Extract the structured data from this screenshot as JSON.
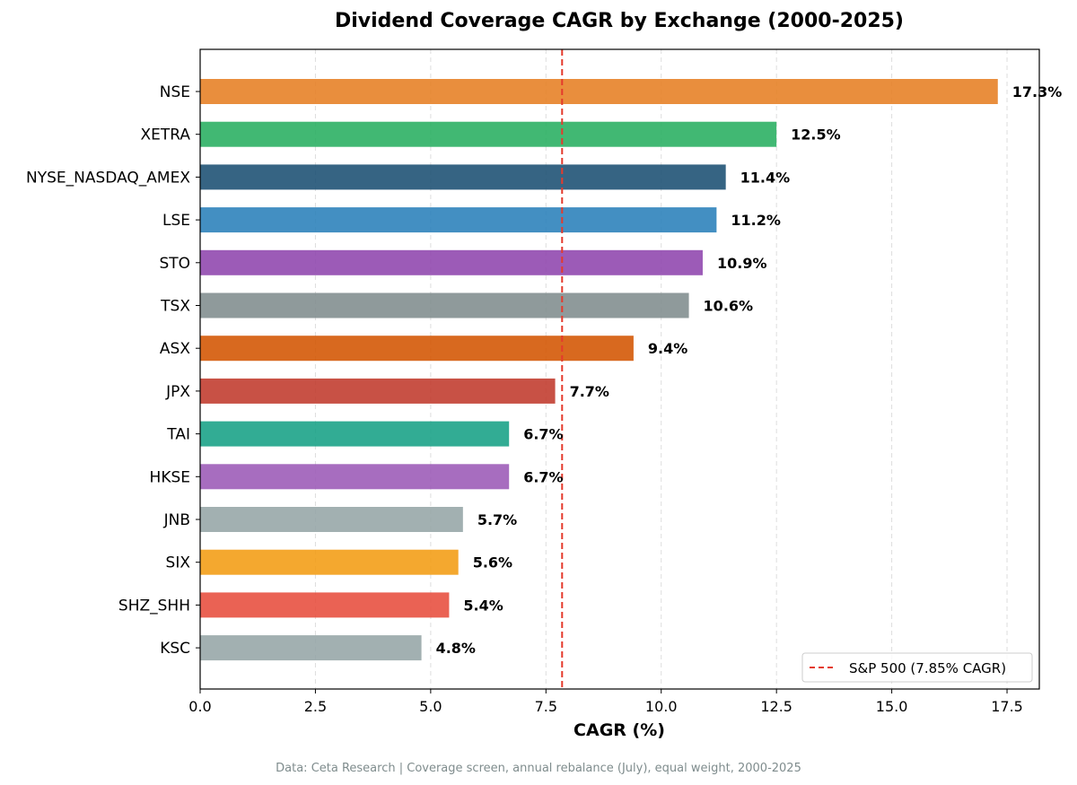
{
  "chart_data": {
    "type": "bar",
    "orientation": "horizontal",
    "title": "Dividend Coverage CAGR by Exchange (2000-2025)",
    "xlabel": "CAGR (%)",
    "ylabel": "",
    "xlim": [
      0,
      18.2
    ],
    "xticks": [
      0.0,
      2.5,
      5.0,
      7.5,
      10.0,
      12.5,
      15.0,
      17.5
    ],
    "xtick_labels": [
      "0.0",
      "2.5",
      "5.0",
      "7.5",
      "10.0",
      "12.5",
      "15.0",
      "17.5"
    ],
    "grid": "x-dashed",
    "categories": [
      "NSE",
      "XETRA",
      "NYSE_NASDAQ_AMEX",
      "LSE",
      "STO",
      "TSX",
      "ASX",
      "JPX",
      "TAI",
      "HKSE",
      "JNB",
      "SIX",
      "SHZ_SHH",
      "KSC"
    ],
    "values": [
      17.3,
      12.5,
      11.4,
      11.2,
      10.9,
      10.6,
      9.4,
      7.7,
      6.7,
      6.7,
      5.7,
      5.6,
      5.4,
      4.8
    ],
    "value_labels": [
      "17.3%",
      "12.5%",
      "11.4%",
      "11.2%",
      "10.9%",
      "10.6%",
      "9.4%",
      "7.7%",
      "6.7%",
      "6.7%",
      "5.7%",
      "5.6%",
      "5.4%",
      "4.8%"
    ],
    "colors": [
      "#e67e22",
      "#27ae60",
      "#1a4e72",
      "#2980b9",
      "#8e44ad",
      "#7f8c8d",
      "#d35400",
      "#c0392b",
      "#16a085",
      "#9b59b6",
      "#95a5a6",
      "#f39c12",
      "#e74c3c",
      "#95a5a6"
    ],
    "reference_line": {
      "value": 7.85,
      "label": "S&P 500 (7.85% CAGR)",
      "color": "#e43a2c",
      "style": "dashed"
    },
    "legend_placement": "bottom-right",
    "footnote": "Data: Ceta Research | Coverage screen, annual rebalance (July), equal weight, 2000-2025"
  }
}
